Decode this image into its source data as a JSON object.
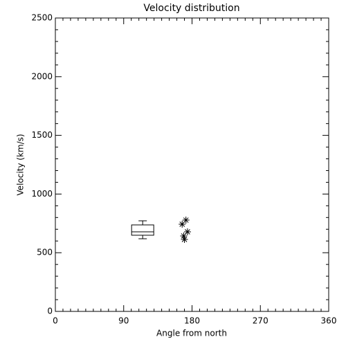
{
  "chart_data": {
    "type": "box",
    "title": "Velocity distribution",
    "x_label": "Angle from north",
    "y_label": "Velocity (km/s)",
    "xlim": [
      0,
      360
    ],
    "xticks": [
      0,
      90,
      180,
      270,
      360
    ],
    "ylim": [
      0,
      2500
    ],
    "yticks": [
      0,
      500,
      1000,
      1500,
      2000,
      2500
    ],
    "xminorticks": [
      10,
      20,
      30,
      40,
      50,
      60,
      70,
      80,
      100,
      110,
      120,
      130,
      140,
      150,
      160,
      170,
      190,
      200,
      210,
      220,
      230,
      240,
      250,
      260,
      280,
      290,
      300,
      310,
      320,
      330,
      340,
      350
    ],
    "yminorticks": [
      100,
      200,
      300,
      400,
      600,
      700,
      800,
      900,
      1100,
      1200,
      1300,
      1400,
      1600,
      1700,
      1800,
      1900,
      2100,
      2200,
      2300,
      2400
    ],
    "color": "#000000",
    "boxes": [
      {
        "x": 115,
        "min": 619,
        "q1": 649,
        "median": 678,
        "q3": 737,
        "max": 772
      }
    ],
    "points": {
      "x": [
        167,
        172,
        174,
        169,
        170
      ],
      "y": [
        743,
        778,
        678,
        643,
        613
      ]
    }
  }
}
